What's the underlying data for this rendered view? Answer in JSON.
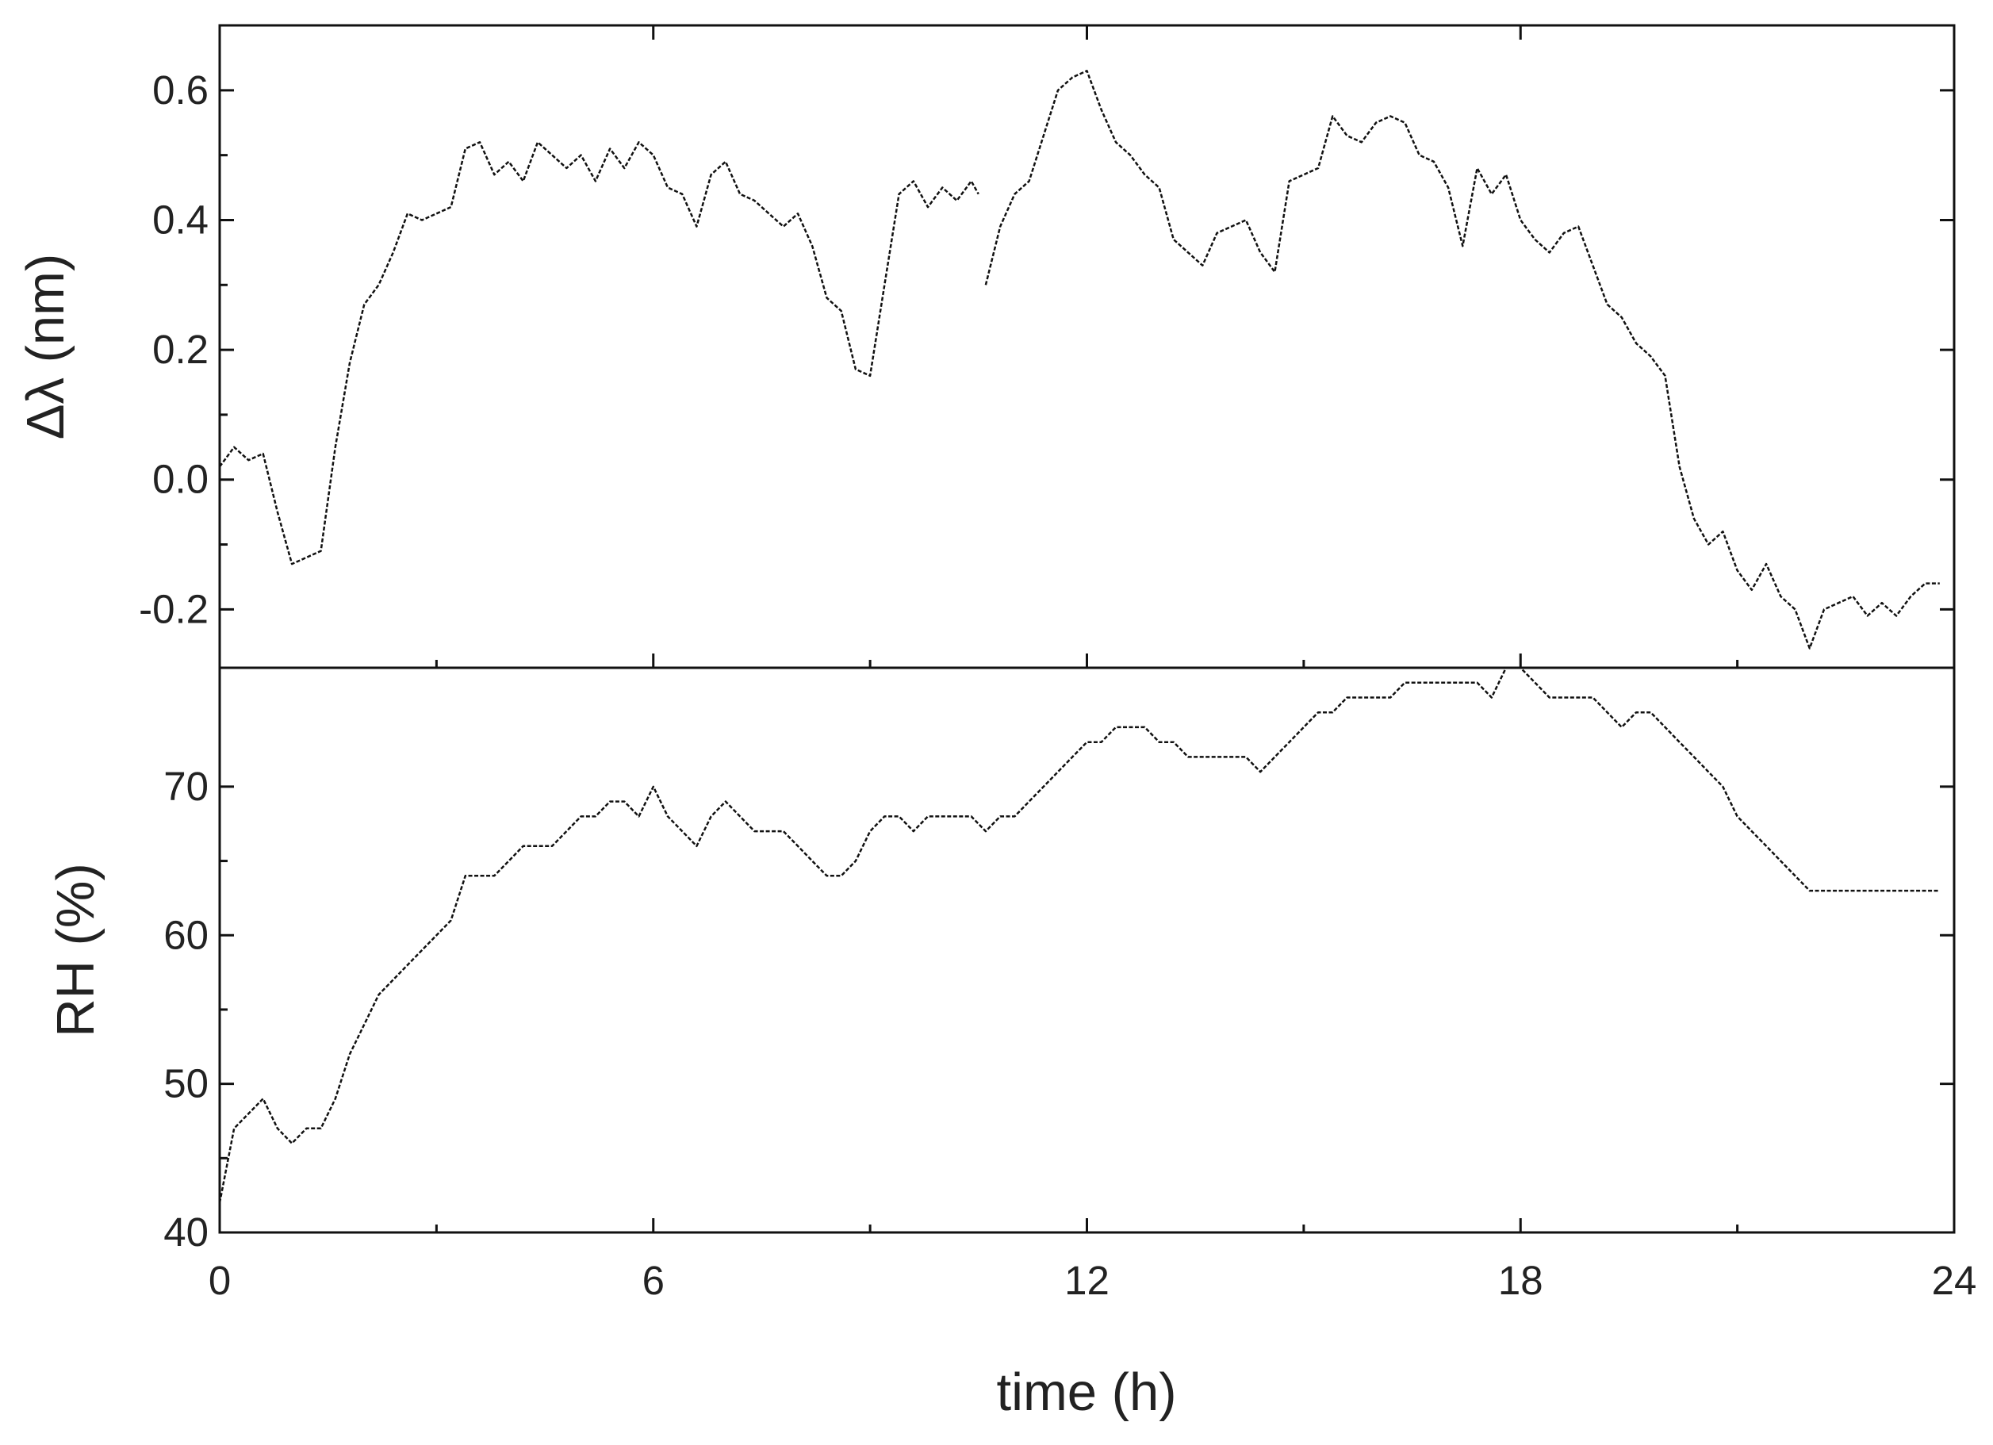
{
  "chart_data": [
    {
      "type": "line",
      "panel": "top",
      "xlabel": "",
      "ylabel": "Δλ (nm)",
      "xlim": [
        0,
        24
      ],
      "ylim": [
        -0.29,
        0.7
      ],
      "y_ticks": [
        -0.2,
        0.0,
        0.2,
        0.4,
        0.6
      ],
      "y_tick_labels": [
        "-0.2",
        "0.0",
        "0.2",
        "0.4",
        "0.6"
      ],
      "x_ticks": [
        0,
        6,
        12,
        18,
        24
      ],
      "grid": false,
      "series": [
        {
          "color": "#111111",
          "x": [
            0,
            0.2,
            0.4,
            0.6,
            0.8,
            1.0,
            1.2,
            1.4,
            1.6,
            1.8,
            2.0,
            2.2,
            2.4,
            2.6,
            2.8,
            3.0,
            3.2,
            3.4,
            3.6,
            3.8,
            4.0,
            4.2,
            4.4,
            4.6,
            4.8,
            5.0,
            5.2,
            5.4,
            5.6,
            5.8,
            6.0,
            6.2,
            6.4,
            6.6,
            6.8,
            7.0,
            7.2,
            7.4,
            7.6,
            7.8,
            8.0,
            8.2,
            8.4,
            8.6,
            8.8,
            9.0,
            9.2,
            9.4,
            9.6,
            9.8,
            10.0,
            10.2,
            10.4,
            10.5
          ],
          "y": [
            0.02,
            0.05,
            0.03,
            0.04,
            -0.05,
            -0.13,
            -0.12,
            -0.11,
            0.05,
            0.18,
            0.27,
            0.3,
            0.35,
            0.41,
            0.4,
            0.41,
            0.42,
            0.51,
            0.52,
            0.47,
            0.49,
            0.46,
            0.52,
            0.5,
            0.48,
            0.5,
            0.46,
            0.51,
            0.48,
            0.52,
            0.5,
            0.45,
            0.44,
            0.39,
            0.47,
            0.49,
            0.44,
            0.43,
            0.41,
            0.39,
            0.41,
            0.36,
            0.28,
            0.26,
            0.17,
            0.16,
            0.3,
            0.44,
            0.46,
            0.42,
            0.45,
            0.43,
            0.46,
            0.44
          ]
        },
        {
          "color": "#111111",
          "x": [
            10.6,
            10.8,
            11.0,
            11.2,
            11.4,
            11.6,
            11.8,
            12.0,
            12.2,
            12.4,
            12.6,
            12.8,
            13.0,
            13.2,
            13.4,
            13.6,
            13.8,
            14.0,
            14.2,
            14.4,
            14.6,
            14.8,
            15.0,
            15.2,
            15.4,
            15.6,
            15.8,
            16.0,
            16.2,
            16.4,
            16.6,
            16.8,
            17.0,
            17.2,
            17.4,
            17.6,
            17.8,
            18.0,
            18.2,
            18.4,
            18.6,
            18.8,
            19.0,
            19.2,
            19.4,
            19.6,
            19.8,
            20.0,
            20.2,
            20.4,
            20.6,
            20.8,
            21.0,
            21.2,
            21.4,
            21.6,
            21.8,
            22.0,
            22.2,
            22.4,
            22.6,
            22.8,
            23.0,
            23.2,
            23.4,
            23.6,
            23.8
          ],
          "y": [
            0.3,
            0.39,
            0.44,
            0.46,
            0.53,
            0.6,
            0.62,
            0.63,
            0.57,
            0.52,
            0.5,
            0.47,
            0.45,
            0.37,
            0.35,
            0.33,
            0.38,
            0.39,
            0.4,
            0.35,
            0.32,
            0.46,
            0.47,
            0.48,
            0.56,
            0.53,
            0.52,
            0.55,
            0.56,
            0.55,
            0.5,
            0.49,
            0.45,
            0.36,
            0.48,
            0.44,
            0.47,
            0.4,
            0.37,
            0.35,
            0.38,
            0.39,
            0.33,
            0.27,
            0.25,
            0.21,
            0.19,
            0.16,
            0.02,
            -0.06,
            -0.1,
            -0.08,
            -0.14,
            -0.17,
            -0.13,
            -0.18,
            -0.2,
            -0.26,
            -0.2,
            -0.19,
            -0.18,
            -0.21,
            -0.19,
            -0.21,
            -0.18,
            -0.16,
            -0.16
          ]
        }
      ]
    },
    {
      "type": "line",
      "panel": "bottom",
      "xlabel": "time (h)",
      "ylabel": "RH (%)",
      "xlim": [
        0,
        24
      ],
      "ylim": [
        40,
        78
      ],
      "y_ticks": [
        40,
        50,
        60,
        70
      ],
      "y_tick_labels": [
        "40",
        "50",
        "60",
        "70"
      ],
      "x_ticks": [
        0,
        6,
        12,
        18,
        24
      ],
      "x_tick_labels": [
        "0",
        "6",
        "12",
        "18",
        "24"
      ],
      "grid": false,
      "series": [
        {
          "color": "#111111",
          "x": [
            0,
            0.2,
            0.4,
            0.6,
            0.8,
            1.0,
            1.2,
            1.4,
            1.6,
            1.8,
            2.0,
            2.2,
            2.4,
            2.6,
            2.8,
            3.0,
            3.2,
            3.4,
            3.6,
            3.8,
            4.0,
            4.2,
            4.4,
            4.6,
            4.8,
            5.0,
            5.2,
            5.4,
            5.6,
            5.8,
            6.0,
            6.2,
            6.4,
            6.6,
            6.8,
            7.0,
            7.2,
            7.4,
            7.6,
            7.8,
            8.0,
            8.2,
            8.4,
            8.6,
            8.8,
            9.0,
            9.2,
            9.4,
            9.6,
            9.8,
            10.0,
            10.2,
            10.4,
            10.6,
            10.8,
            11.0,
            11.2,
            11.4,
            11.6,
            11.8,
            12.0,
            12.2,
            12.4,
            12.6,
            12.8,
            13.0,
            13.2,
            13.4,
            13.6,
            13.8,
            14.0,
            14.2,
            14.4,
            14.6,
            14.8,
            15.0,
            15.2,
            15.4,
            15.6,
            15.8,
            16.0,
            16.2,
            16.4,
            16.6,
            16.8,
            17.0,
            17.2,
            17.4,
            17.6,
            17.8,
            18.0,
            18.2,
            18.4,
            18.6,
            18.8,
            19.0,
            19.2,
            19.4,
            19.6,
            19.8,
            20.0,
            20.2,
            20.4,
            20.6,
            20.8,
            21.0,
            21.2,
            21.4,
            21.6,
            21.8,
            22.0,
            22.2,
            22.4,
            22.6,
            22.8,
            23.0,
            23.2,
            23.4,
            23.6,
            23.8
          ],
          "y": [
            42,
            47,
            48,
            49,
            47,
            46,
            47,
            47,
            49,
            52,
            54,
            56,
            57,
            58,
            59,
            60,
            61,
            64,
            64,
            64,
            65,
            66,
            66,
            66,
            67,
            68,
            68,
            69,
            69,
            68,
            70,
            68,
            67,
            66,
            68,
            69,
            68,
            67,
            67,
            67,
            66,
            65,
            64,
            64,
            65,
            67,
            68,
            68,
            67,
            68,
            68,
            68,
            68,
            67,
            68,
            68,
            69,
            70,
            71,
            72,
            73,
            73,
            74,
            74,
            74,
            73,
            73,
            72,
            72,
            72,
            72,
            72,
            71,
            72,
            73,
            74,
            75,
            75,
            76,
            76,
            76,
            76,
            77,
            77,
            77,
            77,
            77,
            77,
            76,
            78,
            78,
            77,
            76,
            76,
            76,
            76,
            75,
            74,
            75,
            75,
            74,
            73,
            72,
            71,
            70,
            68,
            67,
            66,
            65,
            64,
            63,
            63,
            63,
            63,
            63,
            63,
            63,
            63,
            63,
            63
          ]
        }
      ]
    }
  ]
}
